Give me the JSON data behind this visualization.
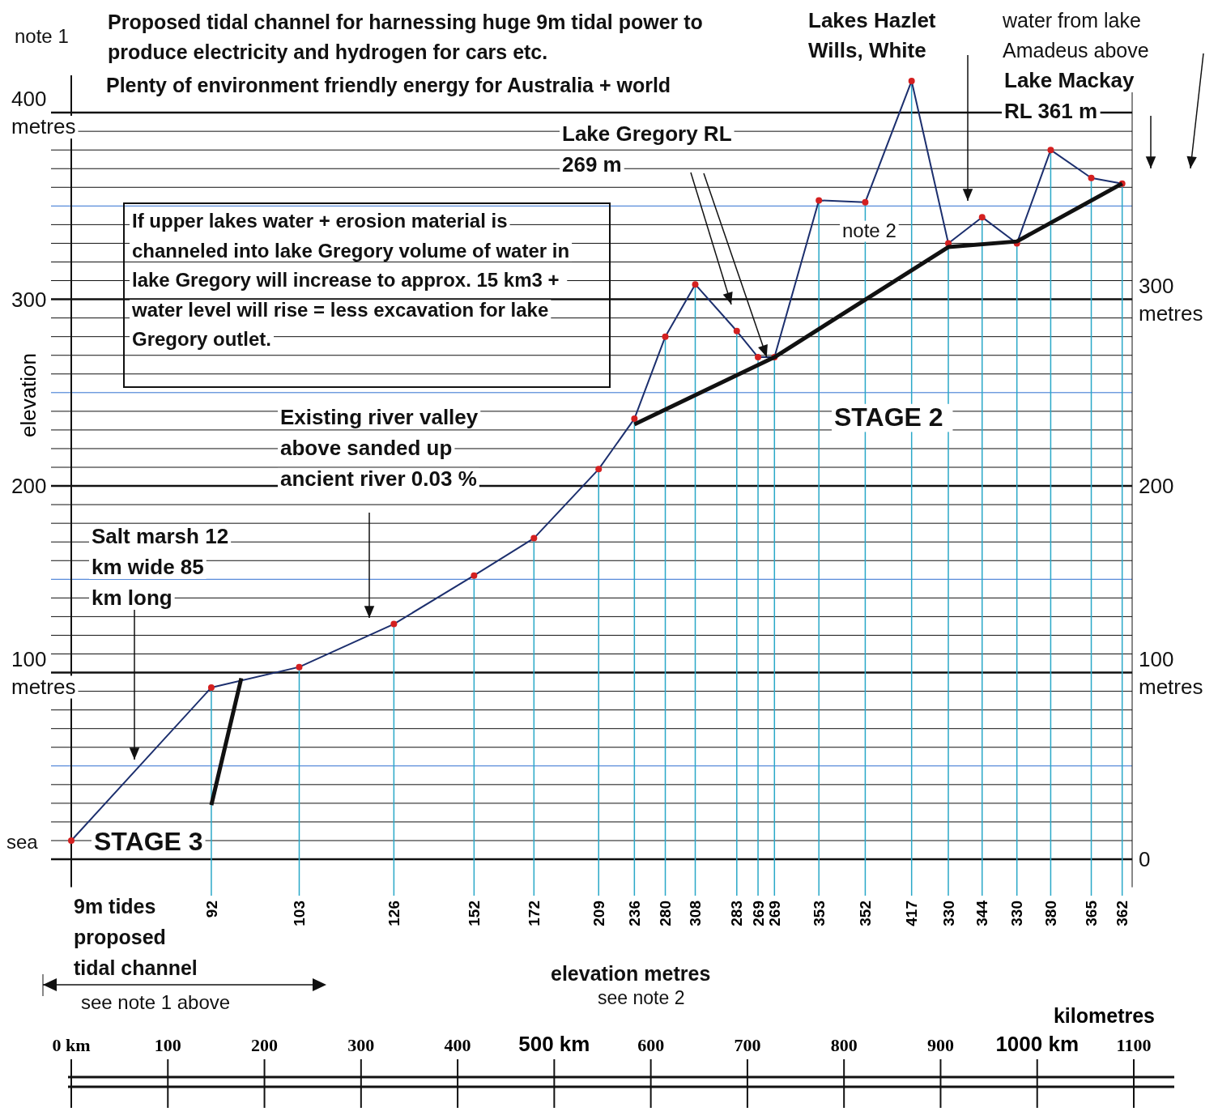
{
  "chart_data": {
    "type": "line",
    "xlabel": "kilometres",
    "ylabel": "elevation",
    "grid": "y",
    "marker": "circle",
    "xlim": [
      0,
      1100
    ],
    "xticks": [
      {
        "value": 0,
        "label": "0 km"
      },
      100,
      200,
      300,
      400,
      {
        "value": 500,
        "label": "500 km"
      },
      600,
      700,
      800,
      900,
      {
        "value": 1000,
        "label": "1000 km"
      },
      1100
    ],
    "ylim": [
      -15,
      420
    ],
    "yticks": [
      {
        "value": 0,
        "label": null
      },
      {
        "value": 10,
        "label": null
      },
      {
        "value": 20,
        "label": null
      },
      {
        "value": 30,
        "label": null
      },
      {
        "value": 40,
        "label": null
      },
      {
        "value": 50,
        "label": null
      },
      {
        "value": 60,
        "label": null
      },
      {
        "value": 70,
        "label": null
      },
      {
        "value": 80,
        "label": null
      },
      {
        "value": 90,
        "label": null
      },
      {
        "value": 100,
        "label": "100 metres"
      },
      {
        "value": 110,
        "label": null
      },
      {
        "value": 120,
        "label": null
      },
      {
        "value": 130,
        "label": null
      },
      {
        "value": 140,
        "label": null
      },
      {
        "value": 150,
        "label": null
      },
      {
        "value": 160,
        "label": null
      },
      {
        "value": 170,
        "label": null
      },
      {
        "value": 180,
        "label": null
      },
      {
        "value": 190,
        "label": null
      },
      200,
      {
        "value": 210,
        "label": null
      },
      {
        "value": 220,
        "label": null
      },
      {
        "value": 230,
        "label": null
      },
      {
        "value": 240,
        "label": null
      },
      {
        "value": 250,
        "label": null
      },
      {
        "value": 260,
        "label": null
      },
      {
        "value": 270,
        "label": null
      },
      {
        "value": 280,
        "label": null
      },
      {
        "value": 290,
        "label": null
      },
      300,
      {
        "value": 310,
        "label": null
      },
      {
        "value": 320,
        "label": null
      },
      {
        "value": 330,
        "label": null
      },
      {
        "value": 340,
        "label": null
      },
      {
        "value": 350,
        "label": null
      },
      {
        "value": 360,
        "label": null
      },
      {
        "value": 370,
        "label": null
      },
      {
        "value": 380,
        "label": null
      },
      {
        "value": 390,
        "label": null
      },
      {
        "value": 400,
        "label": "400 metres"
      }
    ],
    "y2lim": [
      -15,
      420
    ],
    "y2ticks": [
      0,
      {
        "value": 100,
        "label": "100 metres"
      },
      200,
      {
        "value": 300,
        "label": "300 metres"
      }
    ],
    "series": [
      {
        "color": "#1c2f6e",
        "x": [
          0,
          145,
          236,
          334,
          417,
          479,
          546,
          583,
          615,
          646,
          689,
          711,
          728,
          774,
          822,
          870,
          908,
          943,
          979,
          1014,
          1056,
          1088
        ],
        "values": [
          10,
          92,
          103,
          126,
          152,
          172,
          209,
          236,
          280,
          308,
          283,
          269,
          269,
          353,
          352,
          417,
          330,
          344,
          330,
          380,
          365,
          362
        ],
        "value_labels": [
          null,
          "92",
          "103",
          "126",
          "152",
          "172",
          "209",
          "236",
          "280",
          "308",
          "283",
          "269",
          "269",
          "353",
          "352",
          "417",
          "330",
          "344",
          "330",
          "380",
          "365",
          "362"
        ]
      },
      {
        "color": "#111111",
        "marker": "none",
        "x": [
          583,
          728,
          908,
          979,
          1088
        ],
        "values": [
          233,
          269,
          328,
          331,
          362
        ]
      },
      {
        "color": "#111111",
        "marker": "none",
        "x": [
          145,
          176
        ],
        "values": [
          29,
          97
        ]
      }
    ],
    "annotations": [
      "note 1",
      "Proposed tidal channel for harnessing huge 9m tidal power to produce electricity and hydrogen for cars etc.",
      "Plenty of environment friendly energy for Australia + world",
      "Lakes Hazlet Wills, White",
      "water from lake Amadeus above",
      "Lake Mackay RL 361 m",
      {
        "text": "Lake Gregory RL 269 m",
        "x": 720,
        "y": 269
      },
      "If upper lakes water + erosion material is channeled into lake Gregory volume of water in lake Gregory  will increase to approx. 15 km3 + water level will rise = less excavation for lake Gregory outlet.",
      "note 2",
      "STAGE  2",
      "Existing river valley above sanded up ancient river 0.03 %",
      "Salt marsh 12 km wide 85 km long",
      "sea",
      "STAGE 3",
      "9m tides proposed tidal channel",
      "see note 1 above",
      "elevation metres",
      "see note 2"
    ]
  }
}
